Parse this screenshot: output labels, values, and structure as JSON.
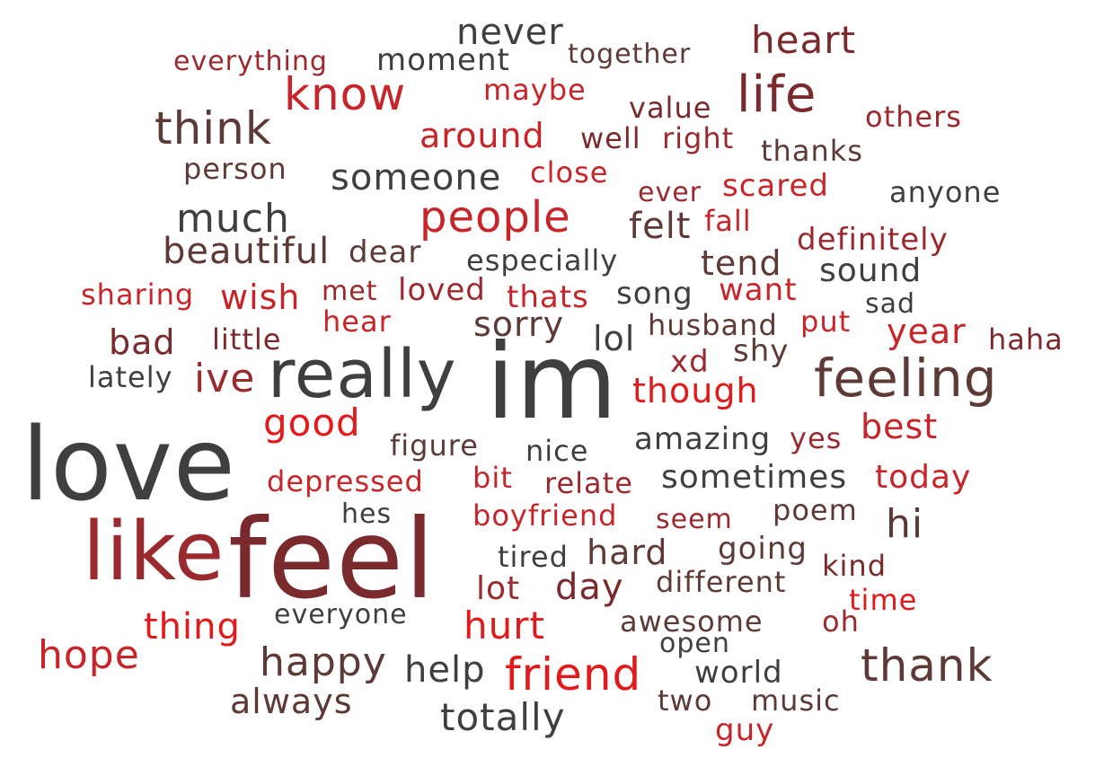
{
  "palette": {
    "red": "#e31a1c",
    "crimson": "#c7252a",
    "dark_red": "#9b2a2e",
    "maroon": "#7a2a2c",
    "brown": "#5e3a36",
    "dark_gray": "#3f3f3f"
  },
  "words": [
    {
      "text": "never",
      "color": "#3f3f3f"
    },
    {
      "text": "heart",
      "color": "#7a2a2c"
    },
    {
      "text": "everything",
      "color": "#9b2a2e"
    },
    {
      "text": "moment",
      "color": "#3f3f3f"
    },
    {
      "text": "together",
      "color": "#5e3a36"
    },
    {
      "text": "know",
      "color": "#c7252a"
    },
    {
      "text": "maybe",
      "color": "#c7252a"
    },
    {
      "text": "life",
      "color": "#7a2a2c"
    },
    {
      "text": "value",
      "color": "#7a2a2c"
    },
    {
      "text": "think",
      "color": "#5e3a36"
    },
    {
      "text": "others",
      "color": "#9b2a2e"
    },
    {
      "text": "around",
      "color": "#c7252a"
    },
    {
      "text": "well",
      "color": "#7a2a2c"
    },
    {
      "text": "right",
      "color": "#9b2a2e"
    },
    {
      "text": "thanks",
      "color": "#5e3a36"
    },
    {
      "text": "person",
      "color": "#5e3a36"
    },
    {
      "text": "someone",
      "color": "#3f3f3f"
    },
    {
      "text": "close",
      "color": "#c7252a"
    },
    {
      "text": "ever",
      "color": "#9b2a2e"
    },
    {
      "text": "scared",
      "color": "#c7252a"
    },
    {
      "text": "anyone",
      "color": "#3f3f3f"
    },
    {
      "text": "much",
      "color": "#3f3f3f"
    },
    {
      "text": "people",
      "color": "#c7252a"
    },
    {
      "text": "felt",
      "color": "#5e3a36"
    },
    {
      "text": "fall",
      "color": "#c7252a"
    },
    {
      "text": "definitely",
      "color": "#9b2a2e"
    },
    {
      "text": "beautiful",
      "color": "#5e3a36"
    },
    {
      "text": "dear",
      "color": "#5e3a36"
    },
    {
      "text": "especially",
      "color": "#3f3f3f"
    },
    {
      "text": "tend",
      "color": "#5e3a36"
    },
    {
      "text": "sound",
      "color": "#3f3f3f"
    },
    {
      "text": "sharing",
      "color": "#c7252a"
    },
    {
      "text": "wish",
      "color": "#c7252a"
    },
    {
      "text": "met",
      "color": "#9b2a2e"
    },
    {
      "text": "loved",
      "color": "#9b2a2e"
    },
    {
      "text": "thats",
      "color": "#c7252a"
    },
    {
      "text": "song",
      "color": "#3f3f3f"
    },
    {
      "text": "want",
      "color": "#c7252a"
    },
    {
      "text": "sad",
      "color": "#3f3f3f"
    },
    {
      "text": "hear",
      "color": "#c7252a"
    },
    {
      "text": "sorry",
      "color": "#5e3a36"
    },
    {
      "text": "husband",
      "color": "#5e3a36"
    },
    {
      "text": "put",
      "color": "#c7252a"
    },
    {
      "text": "year",
      "color": "#c7252a"
    },
    {
      "text": "bad",
      "color": "#7a2a2c"
    },
    {
      "text": "little",
      "color": "#7a2a2c"
    },
    {
      "text": "lol",
      "color": "#3f3f3f"
    },
    {
      "text": "shy",
      "color": "#5e3a36"
    },
    {
      "text": "haha",
      "color": "#7a2a2c"
    },
    {
      "text": "lately",
      "color": "#3f3f3f"
    },
    {
      "text": "ive",
      "color": "#9b2a2e"
    },
    {
      "text": "really",
      "color": "#3f3f3f"
    },
    {
      "text": "im",
      "color": "#3f3f3f"
    },
    {
      "text": "xd",
      "color": "#9b2a2e"
    },
    {
      "text": "feeling",
      "color": "#5e3a36"
    },
    {
      "text": "though",
      "color": "#e31a1c"
    },
    {
      "text": "good",
      "color": "#e31a1c"
    },
    {
      "text": "best",
      "color": "#c7252a"
    },
    {
      "text": "love",
      "color": "#3f3f3f"
    },
    {
      "text": "figure",
      "color": "#5e3a36"
    },
    {
      "text": "nice",
      "color": "#3f3f3f"
    },
    {
      "text": "amazing",
      "color": "#3f3f3f"
    },
    {
      "text": "yes",
      "color": "#9b2a2e"
    },
    {
      "text": "depressed",
      "color": "#c7252a"
    },
    {
      "text": "bit",
      "color": "#c7252a"
    },
    {
      "text": "relate",
      "color": "#9b2a2e"
    },
    {
      "text": "sometimes",
      "color": "#3f3f3f"
    },
    {
      "text": "today",
      "color": "#c7252a"
    },
    {
      "text": "hes",
      "color": "#3f3f3f"
    },
    {
      "text": "boyfriend",
      "color": "#c7252a"
    },
    {
      "text": "seem",
      "color": "#9b2a2e"
    },
    {
      "text": "poem",
      "color": "#5e3a36"
    },
    {
      "text": "hi",
      "color": "#5e3a36"
    },
    {
      "text": "like",
      "color": "#9b2a2e"
    },
    {
      "text": "feel",
      "color": "#7a2a2c"
    },
    {
      "text": "tired",
      "color": "#3f3f3f"
    },
    {
      "text": "hard",
      "color": "#5e3a36"
    },
    {
      "text": "going",
      "color": "#5e3a36"
    },
    {
      "text": "kind",
      "color": "#7a2a2c"
    },
    {
      "text": "lot",
      "color": "#9b2a2e"
    },
    {
      "text": "day",
      "color": "#7a2a2c"
    },
    {
      "text": "different",
      "color": "#5e3a36"
    },
    {
      "text": "time",
      "color": "#e31a1c"
    },
    {
      "text": "thing",
      "color": "#e31a1c"
    },
    {
      "text": "everyone",
      "color": "#3f3f3f"
    },
    {
      "text": "hurt",
      "color": "#e31a1c"
    },
    {
      "text": "awesome",
      "color": "#5e3a36"
    },
    {
      "text": "oh",
      "color": "#9b2a2e"
    },
    {
      "text": "hope",
      "color": "#c7252a"
    },
    {
      "text": "open",
      "color": "#3f3f3f"
    },
    {
      "text": "happy",
      "color": "#5e3a36"
    },
    {
      "text": "help",
      "color": "#3f3f3f"
    },
    {
      "text": "friend",
      "color": "#e31a1c"
    },
    {
      "text": "world",
      "color": "#3f3f3f"
    },
    {
      "text": "thank",
      "color": "#5e3a36"
    },
    {
      "text": "always",
      "color": "#5e3a36"
    },
    {
      "text": "two",
      "color": "#5e3a36"
    },
    {
      "text": "music",
      "color": "#5e3a36"
    },
    {
      "text": "totally",
      "color": "#3f3f3f"
    },
    {
      "text": "guy",
      "color": "#c7252a"
    }
  ]
}
